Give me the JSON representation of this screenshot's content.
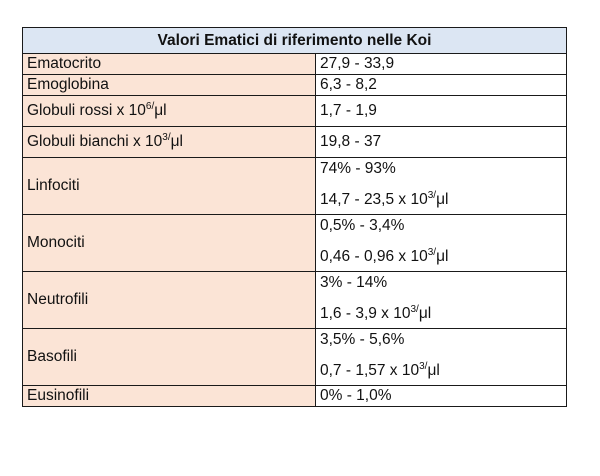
{
  "table": {
    "title": "Valori Ematici di riferimento nelle Koi",
    "rows": [
      {
        "name": "Ematocrito",
        "values": [
          "27,9 - 33,9"
        ]
      },
      {
        "name": "Emoglobina",
        "values": [
          "6,3 - 8,2"
        ]
      },
      {
        "name_prefix": "Globuli rossi x 10",
        "name_sup": "6",
        "name_suffix": "μl",
        "values": [
          "1,7 - 1,9"
        ]
      },
      {
        "name_prefix": "Globuli bianchi x 10",
        "name_sup": "3",
        "name_suffix": "μl",
        "values": [
          "19,8 - 37"
        ]
      },
      {
        "name": "Linfociti",
        "values": [
          "74% - 93%"
        ],
        "unit_value_prefix": "14,7 - 23,5 x 10",
        "unit_sup": "3",
        "unit_suffix": "μl"
      },
      {
        "name": "Monociti",
        "values": [
          "0,5% - 3,4%"
        ],
        "unit_value_prefix": "0,46 - 0,96 x 10",
        "unit_sup": "3",
        "unit_suffix": "μl"
      },
      {
        "name": "Neutrofili",
        "values": [
          "3% - 14%"
        ],
        "unit_value_prefix": "1,6 - 3,9 x 10",
        "unit_sup": "3",
        "unit_suffix": "μl"
      },
      {
        "name": "Basofili",
        "values": [
          "3,5% - 5,6%"
        ],
        "unit_value_prefix": "0,7 - 1,57 x 10",
        "unit_sup": "3",
        "unit_suffix": "μl"
      },
      {
        "name": "Eusinofili",
        "values": [
          "0% - 1,0%"
        ]
      }
    ]
  }
}
